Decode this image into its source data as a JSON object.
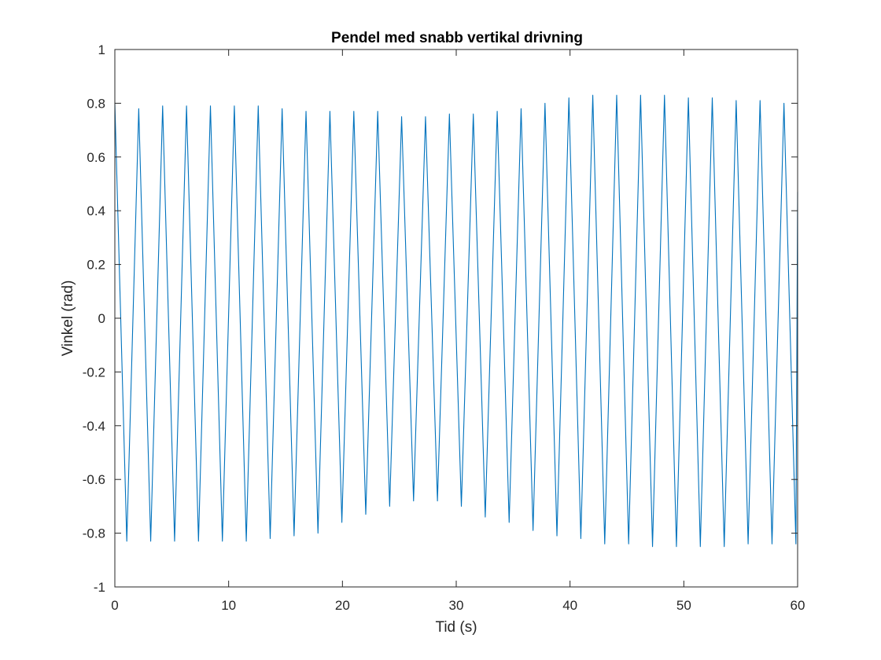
{
  "chart_data": {
    "type": "line",
    "title": "Pendel med snabb vertikal drivning",
    "xlabel": "Tid (s)",
    "ylabel": "Vinkel (rad)",
    "xlim": [
      0,
      60
    ],
    "ylim": [
      -1,
      1
    ],
    "xticks": [
      0,
      10,
      20,
      30,
      40,
      50,
      60
    ],
    "yticks": [
      -1,
      -0.8,
      -0.6,
      -0.4,
      -0.2,
      0,
      0.2,
      0.4,
      0.6,
      0.8,
      1
    ],
    "xtick_labels": [
      "0",
      "10",
      "20",
      "30",
      "40",
      "50",
      "60"
    ],
    "ytick_labels": [
      "-1",
      "-0.8",
      "-0.6",
      "-0.4",
      "-0.2",
      "0",
      "0.2",
      "0.4",
      "0.6",
      "0.8",
      "1"
    ],
    "grid": false,
    "box": true,
    "line_color": "#0072BD",
    "axis_color": "#262626",
    "series": [
      {
        "x": [
          0,
          1.05,
          2.1,
          3.15,
          4.2,
          5.25,
          6.3,
          7.35,
          8.4,
          9.45,
          10.5,
          11.55,
          12.6,
          13.65,
          14.7,
          15.75,
          16.8,
          17.85,
          18.9,
          19.95,
          21,
          22.05,
          23.1,
          24.15,
          25.2,
          26.25,
          27.3,
          28.35,
          29.4,
          30.45,
          31.5,
          32.55,
          33.6,
          34.65,
          35.7,
          36.75,
          37.8,
          38.85,
          39.9,
          40.95,
          42,
          43.05,
          44.1,
          45.15,
          46.2,
          47.25,
          48.3,
          49.35,
          50.4,
          51.45,
          52.5,
          53.55,
          54.6,
          55.65,
          56.7,
          57.75,
          58.8,
          59.85,
          60
        ],
        "y": [
          0.8,
          -0.83,
          0.78,
          -0.83,
          0.79,
          -0.83,
          0.79,
          -0.83,
          0.79,
          -0.83,
          0.79,
          -0.83,
          0.79,
          -0.82,
          0.78,
          -0.81,
          0.77,
          -0.8,
          0.77,
          -0.76,
          0.77,
          -0.73,
          0.77,
          -0.7,
          0.75,
          -0.68,
          0.75,
          -0.68,
          0.76,
          -0.7,
          0.76,
          -0.74,
          0.77,
          -0.76,
          0.78,
          -0.79,
          0.8,
          -0.81,
          0.82,
          -0.82,
          0.83,
          -0.84,
          0.83,
          -0.84,
          0.83,
          -0.85,
          0.83,
          -0.85,
          0.82,
          -0.85,
          0.82,
          -0.85,
          0.81,
          -0.84,
          0.81,
          -0.84,
          0.8,
          -0.84,
          0.47
        ]
      }
    ]
  }
}
